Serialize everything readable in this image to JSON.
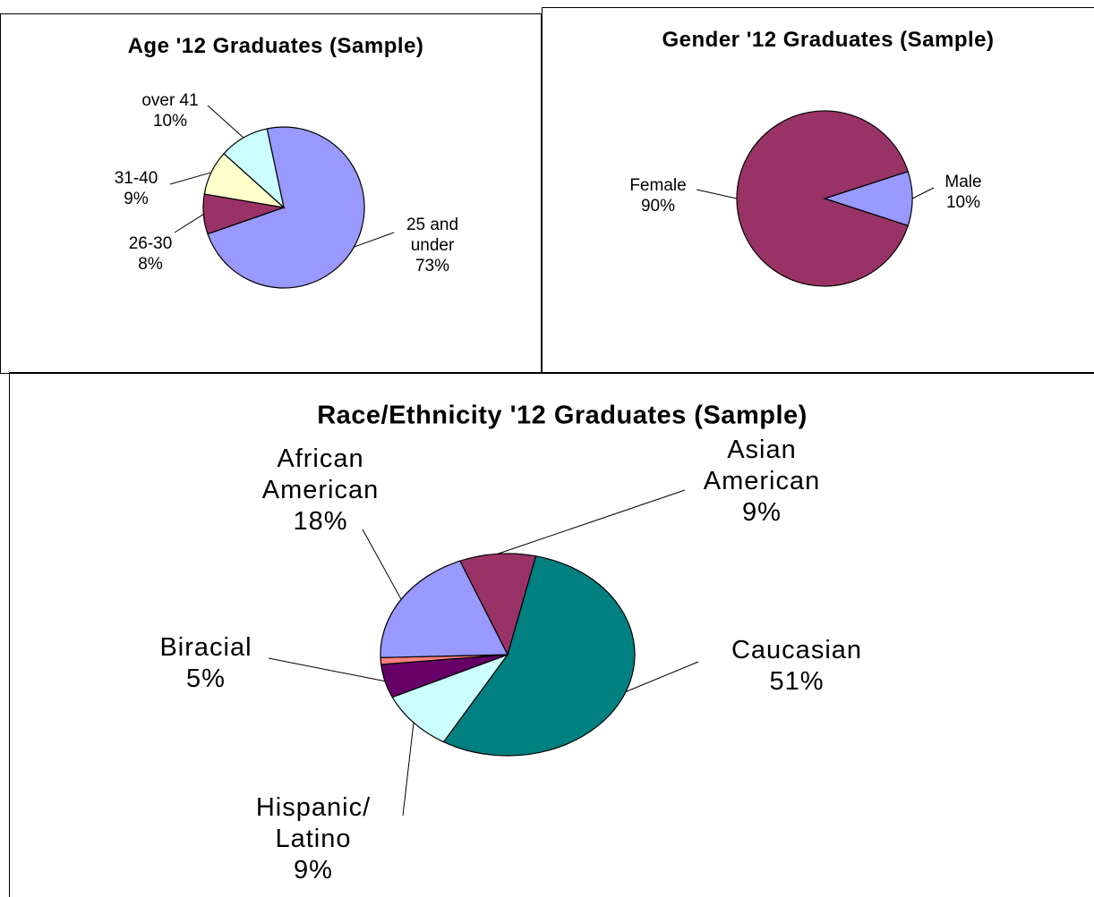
{
  "chart_data": [
    {
      "type": "pie",
      "title": "Age '12 Graduates (Sample)",
      "categories": [
        "25 and under",
        "26-30",
        "31-40",
        "over 41"
      ],
      "values": [
        73,
        8,
        9,
        10
      ],
      "value_labels": [
        "73%",
        "8%",
        "9%",
        "10%"
      ],
      "colors": [
        "#9999ff",
        "#993366",
        "#ffffcc",
        "#ccffff"
      ]
    },
    {
      "type": "pie",
      "title": "Gender '12 Graduates (Sample)",
      "categories": [
        "Male",
        "Female"
      ],
      "values": [
        10,
        90
      ],
      "value_labels": [
        "10%",
        "90%"
      ],
      "colors": [
        "#9999ff",
        "#993366"
      ]
    },
    {
      "type": "pie",
      "title": "Race/Ethnicity '12 Graduates (Sample)",
      "categories": [
        "Asian American",
        "Caucasian",
        "Hispanic/ Latino",
        "Biracial",
        null,
        "African American"
      ],
      "values": [
        9,
        51,
        9,
        5,
        1,
        18
      ],
      "value_labels": [
        "9%",
        "51%",
        "9%",
        "5%",
        null,
        "18%"
      ],
      "colors": [
        "#993366",
        "#008080",
        "#ccffff",
        "#660066",
        "#ff8080",
        "#9999ff"
      ]
    }
  ]
}
